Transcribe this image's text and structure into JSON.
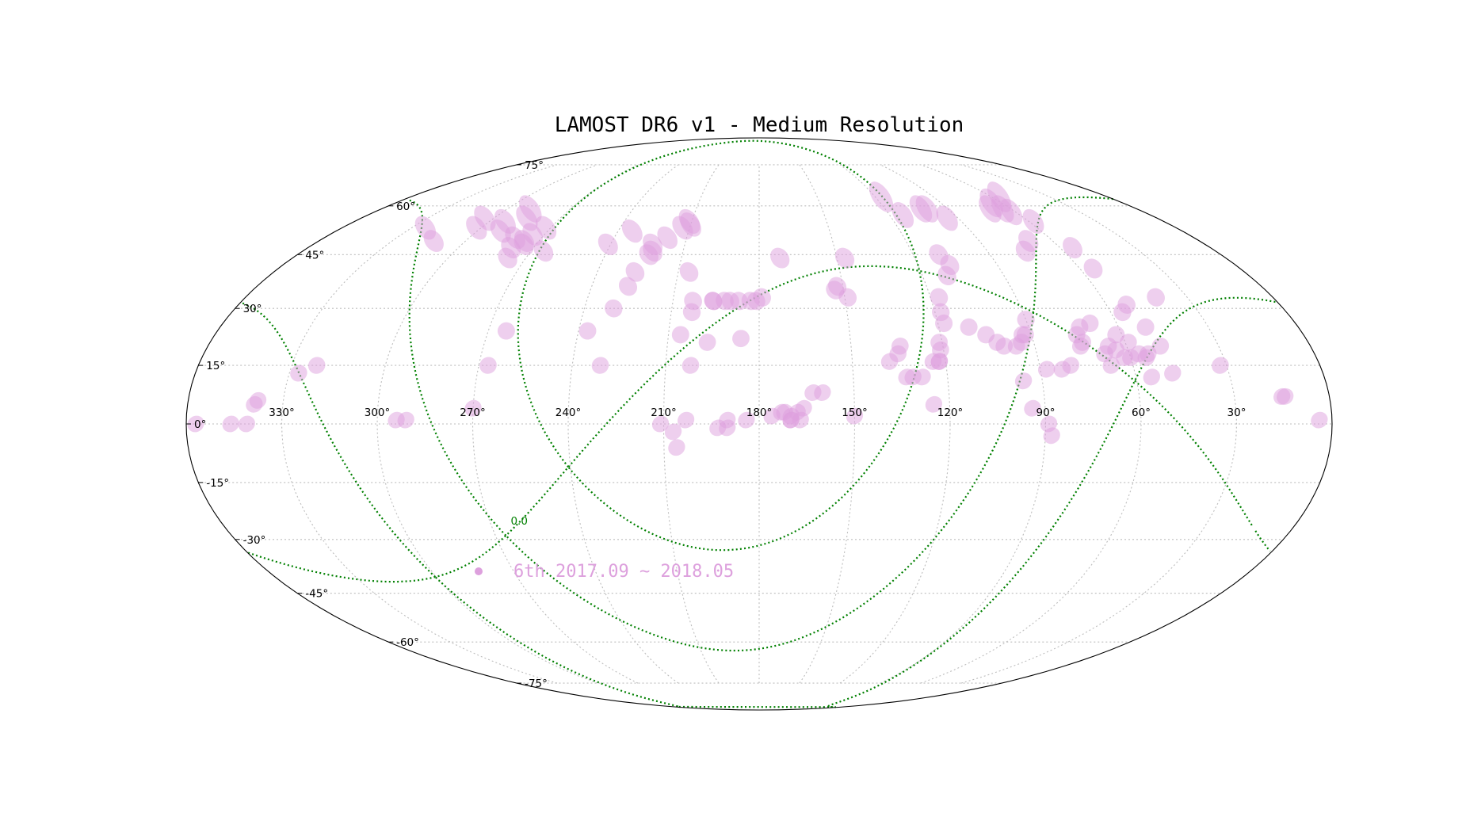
{
  "chart_data": {
    "type": "scatter",
    "projection": "mollweide",
    "title": "LAMOST DR6 v1 - Medium Resolution",
    "grid": true,
    "legend_placement": "lower-left",
    "colors": {
      "plate": "#dda0dd",
      "galactic_grid": "#008000",
      "graticule": "#bdbdbd"
    },
    "ra_tick_labels": [
      {
        "value": 330,
        "label": "330°"
      },
      {
        "value": 300,
        "label": "300°"
      },
      {
        "value": 270,
        "label": "270°"
      },
      {
        "value": 240,
        "label": "240°"
      },
      {
        "value": 210,
        "label": "210°"
      },
      {
        "value": 180,
        "label": "180°"
      },
      {
        "value": 150,
        "label": "150°"
      },
      {
        "value": 120,
        "label": "120°"
      },
      {
        "value": 90,
        "label": "90°"
      },
      {
        "value": 60,
        "label": "60°"
      },
      {
        "value": 30,
        "label": "30°"
      }
    ],
    "dec_tick_labels": [
      {
        "value": 75,
        "label": "75°"
      },
      {
        "value": 60,
        "label": "60°"
      },
      {
        "value": 45,
        "label": "45°"
      },
      {
        "value": 30,
        "label": "30°"
      },
      {
        "value": 15,
        "label": "15°"
      },
      {
        "value": 0,
        "label": "0°"
      },
      {
        "value": -15,
        "label": "-15°"
      },
      {
        "value": -30,
        "label": "-30°"
      },
      {
        "value": -45,
        "label": "-45°"
      },
      {
        "value": -60,
        "label": "-60°"
      },
      {
        "value": -75,
        "label": "-75°"
      }
    ],
    "galactic_annotation": "0.0",
    "series": [
      {
        "name": "6th 2017.09 ~ 2018.05",
        "points": [
          [
            357,
            0
          ],
          [
            346,
            0
          ],
          [
            341,
            0
          ],
          [
            339,
            5
          ],
          [
            338,
            6
          ],
          [
            327,
            13
          ],
          [
            322,
            15
          ],
          [
            294,
            1
          ],
          [
            291,
            1
          ],
          [
            270,
            4
          ],
          [
            267,
            15
          ],
          [
            264,
            24
          ],
          [
            237,
            24
          ],
          [
            231,
            15
          ],
          [
            230,
            30
          ],
          [
            227,
            36
          ],
          [
            226,
            40
          ],
          [
            223,
            45
          ],
          [
            222,
            46
          ],
          [
            218,
            50
          ],
          [
            213,
            53
          ],
          [
            211,
            55
          ],
          [
            210,
            54
          ],
          [
            206,
            23
          ],
          [
            206,
            40
          ],
          [
            203,
            29
          ],
          [
            203,
            32
          ],
          [
            202,
            15
          ],
          [
            197,
            21
          ],
          [
            196,
            32
          ],
          [
            196,
            32
          ],
          [
            192,
            32
          ],
          [
            190,
            32
          ],
          [
            187,
            32
          ],
          [
            183,
            32
          ],
          [
            181,
            32
          ],
          [
            179,
            33
          ],
          [
            211,
            0
          ],
          [
            207,
            -2
          ],
          [
            206,
            -6
          ],
          [
            203,
            1
          ],
          [
            193,
            -1
          ],
          [
            190,
            1
          ],
          [
            190,
            -1
          ],
          [
            184,
            1
          ],
          [
            186,
            22
          ],
          [
            176,
            2
          ],
          [
            173,
            3
          ],
          [
            172,
            3
          ],
          [
            170,
            1
          ],
          [
            170,
            2
          ],
          [
            168,
            3
          ],
          [
            167,
            1
          ],
          [
            170,
            1
          ],
          [
            166,
            4
          ],
          [
            172,
            44
          ],
          [
            163,
            8
          ],
          [
            160,
            8
          ],
          [
            153,
            35
          ],
          [
            152,
            36
          ],
          [
            149,
            33
          ],
          [
            150,
            2
          ],
          [
            147,
            44
          ],
          [
            138,
            16
          ],
          [
            135,
            18
          ],
          [
            134,
            20
          ],
          [
            133,
            12
          ],
          [
            131,
            12
          ],
          [
            128,
            12
          ],
          [
            125,
            5
          ],
          [
            124,
            16
          ],
          [
            122,
            16
          ],
          [
            122,
            16
          ],
          [
            121,
            19
          ],
          [
            121,
            21
          ],
          [
            118,
            26
          ],
          [
            118,
            29
          ],
          [
            117,
            33
          ],
          [
            114,
            57
          ],
          [
            111,
            39
          ],
          [
            110,
            25
          ],
          [
            105,
            23
          ],
          [
            102,
            21
          ],
          [
            100,
            20
          ],
          [
            96,
            20
          ],
          [
            94,
            21
          ],
          [
            93,
            23
          ],
          [
            92,
            23
          ],
          [
            96,
            11
          ],
          [
            94,
            4
          ],
          [
            90,
            27
          ],
          [
            89,
            0
          ],
          [
            88,
            -3
          ],
          [
            88,
            14
          ],
          [
            83,
            14
          ],
          [
            80,
            15
          ],
          [
            75,
            23
          ],
          [
            75,
            20
          ],
          [
            74,
            21
          ],
          [
            75,
            46
          ],
          [
            73,
            25
          ],
          [
            69,
            26
          ],
          [
            68,
            18
          ],
          [
            67,
            15
          ],
          [
            66,
            20
          ],
          [
            64,
            19
          ],
          [
            62,
            23
          ],
          [
            62,
            17
          ],
          [
            60,
            17
          ],
          [
            59,
            21
          ],
          [
            57,
            18
          ],
          [
            55,
            17
          ],
          [
            56,
            29
          ],
          [
            55,
            12
          ],
          [
            54,
            18
          ],
          [
            55,
            41
          ],
          [
            55,
            47
          ],
          [
            53,
            31
          ],
          [
            51,
            25
          ],
          [
            49,
            20
          ],
          [
            48,
            13
          ],
          [
            41,
            33
          ],
          [
            32,
            15
          ],
          [
            15,
            7
          ],
          [
            14,
            7
          ],
          [
            4,
            1
          ],
          [
            64,
            59
          ],
          [
            95,
            56
          ],
          [
            103,
            59
          ],
          [
            100,
            59
          ],
          [
            110,
            45
          ],
          [
            117,
            63
          ],
          [
            108,
            42
          ],
          [
            70,
            59
          ],
          [
            65,
            61
          ],
          [
            62,
            58
          ],
          [
            58,
            55
          ],
          [
            56,
            63
          ],
          [
            70,
            49
          ],
          [
            313,
            49
          ],
          [
            302,
            53
          ],
          [
            324,
            53
          ],
          [
            265,
            46
          ],
          [
            241,
            48
          ],
          [
            234,
            52
          ],
          [
            223,
            48
          ],
          [
            275,
            51
          ],
          [
            279,
            47
          ],
          [
            281,
            50
          ],
          [
            277,
            44
          ],
          [
            289,
            59
          ],
          [
            304,
            56
          ],
          [
            290,
            52
          ],
          [
            293,
            55
          ],
          [
            272,
            53
          ],
          [
            276,
            49
          ],
          [
            275,
            48
          ],
          [
            285,
            56
          ]
        ]
      }
    ],
    "source_note": "values estimated from the plotted sky map"
  }
}
